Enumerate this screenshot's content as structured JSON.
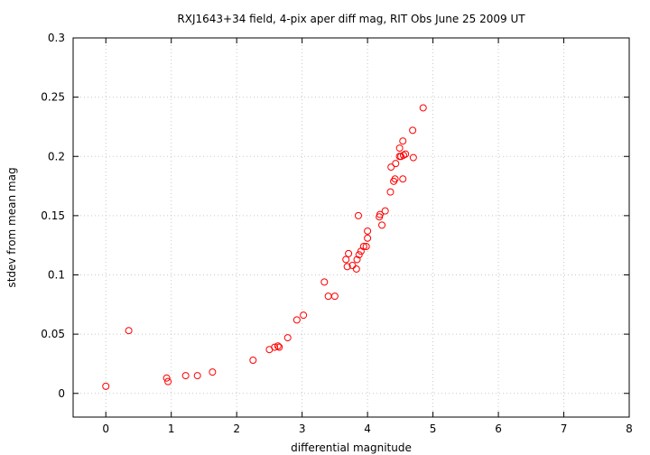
{
  "chart_data": {
    "type": "scatter",
    "title": "RXJ1643+34 field,  4-pix aper diff mag, RIT Obs June 25 2009 UT",
    "xlabel": "differential magnitude",
    "ylabel": "stdev from mean mag",
    "xlim": [
      -0.5,
      8
    ],
    "ylim": [
      -0.02,
      0.3
    ],
    "xticks": [
      "0",
      "1",
      "2",
      "3",
      "4",
      "5",
      "6",
      "7",
      "8"
    ],
    "yticks": [
      "0",
      "0.05",
      "0.1",
      "0.15",
      "0.2",
      "0.25",
      "0.3"
    ],
    "grid": true,
    "marker_color": "#ff0000",
    "points": [
      [
        0.0,
        0.006
      ],
      [
        0.35,
        0.053
      ],
      [
        0.93,
        0.013
      ],
      [
        0.95,
        0.01
      ],
      [
        1.22,
        0.015
      ],
      [
        1.4,
        0.015
      ],
      [
        1.63,
        0.018
      ],
      [
        2.25,
        0.028
      ],
      [
        2.5,
        0.037
      ],
      [
        2.58,
        0.039
      ],
      [
        2.63,
        0.04
      ],
      [
        2.65,
        0.039
      ],
      [
        2.78,
        0.047
      ],
      [
        2.92,
        0.062
      ],
      [
        3.02,
        0.066
      ],
      [
        3.34,
        0.094
      ],
      [
        3.4,
        0.082
      ],
      [
        3.5,
        0.082
      ],
      [
        3.67,
        0.113
      ],
      [
        3.69,
        0.107
      ],
      [
        3.71,
        0.118
      ],
      [
        3.77,
        0.108
      ],
      [
        3.83,
        0.105
      ],
      [
        3.84,
        0.113
      ],
      [
        3.86,
        0.15
      ],
      [
        3.87,
        0.117
      ],
      [
        3.9,
        0.12
      ],
      [
        3.94,
        0.124
      ],
      [
        3.98,
        0.124
      ],
      [
        4.0,
        0.131
      ],
      [
        4.0,
        0.137
      ],
      [
        4.18,
        0.149
      ],
      [
        4.19,
        0.151
      ],
      [
        4.22,
        0.142
      ],
      [
        4.27,
        0.154
      ],
      [
        4.35,
        0.17
      ],
      [
        4.36,
        0.191
      ],
      [
        4.4,
        0.179
      ],
      [
        4.42,
        0.181
      ],
      [
        4.43,
        0.194
      ],
      [
        4.49,
        0.207
      ],
      [
        4.49,
        0.2
      ],
      [
        4.51,
        0.2
      ],
      [
        4.54,
        0.181
      ],
      [
        4.54,
        0.213
      ],
      [
        4.55,
        0.201
      ],
      [
        4.58,
        0.202
      ],
      [
        4.69,
        0.222
      ],
      [
        4.7,
        0.199
      ],
      [
        4.85,
        0.241
      ]
    ]
  }
}
